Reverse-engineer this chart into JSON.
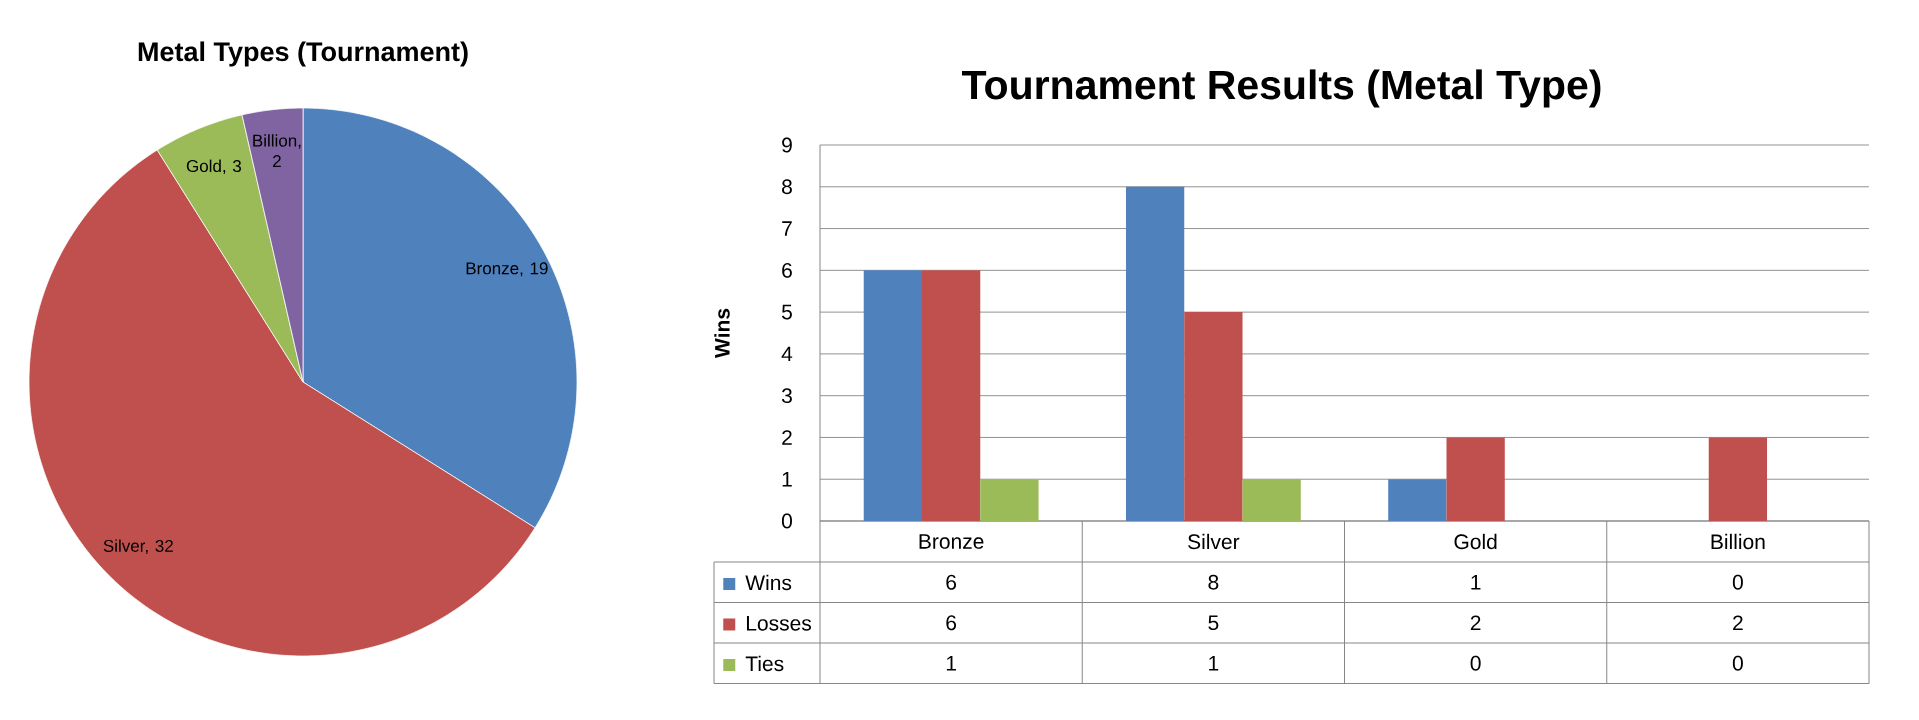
{
  "chart_data": [
    {
      "type": "pie",
      "title": "Metal Types (Tournament)",
      "categories": [
        null,
        null,
        null,
        null
      ],
      "values": [
        19,
        32,
        3,
        2
      ],
      "colors": [
        "#4f81bd",
        "#c0504d",
        "#9bbb59",
        "#8064a2"
      ],
      "value_labels": [
        "Bronze, 19",
        "Silver, 32",
        "Gold, 3",
        "Billion, 2"
      ]
    },
    {
      "type": "bar",
      "title": "Tournament Results (Metal Type)",
      "ylabel": "Wins",
      "categories": [
        "Bronze",
        "Silver",
        "Gold",
        "Billion"
      ],
      "series": [
        {
          "name": "Wins",
          "color": "#4f81bd",
          "values": [
            6,
            8,
            1,
            0
          ]
        },
        {
          "name": "Losses",
          "color": "#c0504d",
          "values": [
            6,
            5,
            2,
            2
          ]
        },
        {
          "name": "Ties",
          "color": "#9bbb59",
          "values": [
            1,
            1,
            0,
            0
          ]
        }
      ],
      "ylim": [
        0,
        9
      ],
      "yticks": [
        0,
        1,
        2,
        3,
        4,
        5,
        6,
        7,
        8,
        9
      ],
      "grid": "y",
      "legend": "bottom left",
      "data_labels": true
    }
  ]
}
